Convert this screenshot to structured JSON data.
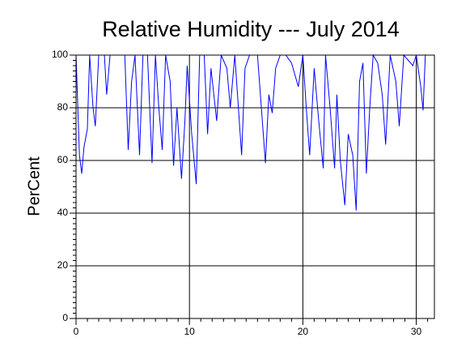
{
  "chart_data": {
    "type": "line",
    "title": "Relative Humidity --- July 2014",
    "y_label": "PerCent",
    "x": [
      0.0,
      0.3,
      0.5,
      0.7,
      1.0,
      1.2,
      1.5,
      1.7,
      2.0,
      2.5,
      2.7,
      3.0,
      4.3,
      4.6,
      4.9,
      5.2,
      5.6,
      5.9,
      6.3,
      6.7,
      7.0,
      7.3,
      7.6,
      7.9,
      8.3,
      8.6,
      8.9,
      9.3,
      9.6,
      9.8,
      10.2,
      10.6,
      10.9,
      11.3,
      11.6,
      11.9,
      12.4,
      12.8,
      13.3,
      13.6,
      14.0,
      14.6,
      14.9,
      15.3,
      16.0,
      16.7,
      17.0,
      17.3,
      17.6,
      18.0,
      18.5,
      19.0,
      19.6,
      20.0,
      20.3,
      20.6,
      21.0,
      21.4,
      21.8,
      22.0,
      22.4,
      22.8,
      23.0,
      23.3,
      23.7,
      24.0,
      24.4,
      24.7,
      25.0,
      25.3,
      25.6,
      25.9,
      26.2,
      26.6,
      27.0,
      27.3,
      27.7,
      28.2,
      28.5,
      28.9,
      29.3,
      29.7,
      30.0,
      30.4,
      30.6,
      30.8
    ],
    "series": [
      {
        "name": "Relative Humidity",
        "color": "#0000ff",
        "values": [
          100,
          62,
          55,
          65,
          72,
          100,
          80,
          73,
          100,
          100,
          85,
          100,
          100,
          64,
          90,
          100,
          62,
          100,
          100,
          59,
          100,
          80,
          64,
          100,
          90,
          58,
          80,
          53,
          75,
          96,
          70,
          51,
          100,
          100,
          70,
          95,
          75,
          100,
          95,
          80,
          100,
          62,
          95,
          100,
          100,
          59,
          85,
          78,
          95,
          100,
          100,
          97,
          88,
          100,
          80,
          62,
          95,
          75,
          57,
          100,
          80,
          57,
          85,
          60,
          43,
          70,
          62,
          41,
          90,
          97,
          55,
          80,
          100,
          97,
          85,
          66,
          100,
          90,
          73,
          100,
          98,
          96,
          100,
          88,
          79,
          100
        ]
      }
    ],
    "xlim": [
      0,
      31.6
    ],
    "ylim": [
      0,
      100
    ],
    "xticks": [
      0,
      10,
      20,
      30
    ],
    "yticks": [
      0,
      20,
      40,
      60,
      80,
      100
    ],
    "grid": true
  }
}
